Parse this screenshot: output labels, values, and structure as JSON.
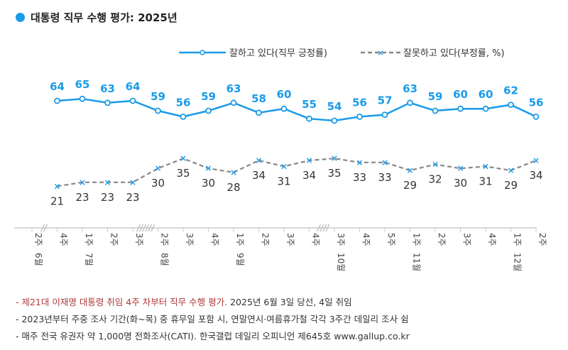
{
  "title": "대통령 직무 수행 평가: 2025년",
  "colors": {
    "approve": "#1a9be8",
    "disapprove": "#888888",
    "accent_note": "#b03a3a"
  },
  "chart_data": {
    "type": "line",
    "title": "대통령 직무 수행 평가: 2025년",
    "categories": [
      "6월 2주",
      "4주",
      "7월 1주",
      "2주",
      "3주",
      "8월 2주",
      "3주",
      "4주",
      "9월 1주",
      "2주",
      "3주",
      "4주",
      "10월 3주",
      "4주",
      "5주",
      "11월 1주",
      "2주",
      "3주",
      "4주",
      "12월 1주",
      "2주"
    ],
    "series": [
      {
        "name": "잘하고 있다(직무 긍정률)",
        "style": "solid-circle",
        "values": [
          null,
          64,
          65,
          63,
          64,
          59,
          56,
          59,
          63,
          58,
          60,
          55,
          54,
          56,
          57,
          63,
          59,
          60,
          60,
          62,
          56
        ]
      },
      {
        "name": "잘못하고 있다(부정률, %)",
        "style": "dashed-x",
        "values": [
          null,
          21,
          23,
          23,
          23,
          30,
          35,
          30,
          28,
          34,
          31,
          34,
          35,
          33,
          33,
          29,
          32,
          30,
          31,
          29,
          34
        ]
      }
    ],
    "axis_breaks": [
      "//",
      "//////",
      "////"
    ],
    "grid": false,
    "legend": "top-right"
  },
  "notes": {
    "line1_red": "- 제21대 이재명 대통령 취임 4주 차부터 직무 수행 평가.",
    "line1_rest": " 2025년 6월 3일 당선, 4일 취임",
    "line2": "- 2023년부터 주중 조사 기간(화~목) 중 휴무일 포함 시, 연말연시·여름휴가철 각각 3주간 데일리 조사 쉼",
    "line3": "- 매주 전국 유권자 약 1,000명 전화조사(CATI). 한국갤럽 데일리 오피니언 제645호 www.gallup.co.kr"
  }
}
